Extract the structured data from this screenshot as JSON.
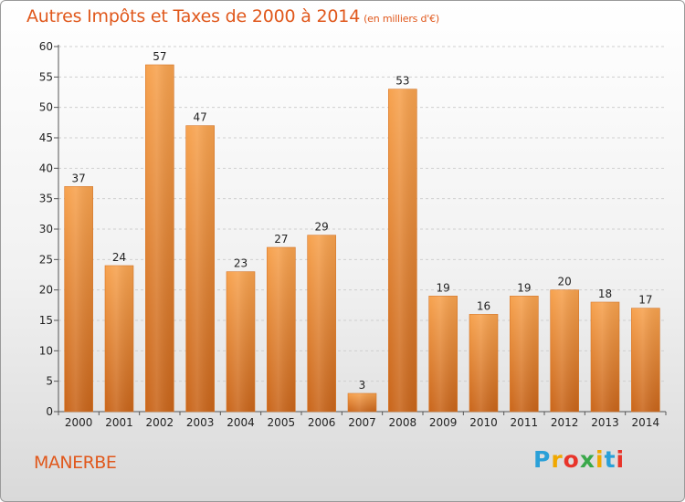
{
  "header": {
    "title": "Autres Impôts et Taxes de 2000 à 2014",
    "subtitle": "(en milliers d'€)"
  },
  "footer": {
    "city": "MANERBE",
    "logo_letters": [
      "P",
      "r",
      "o",
      "x",
      "i",
      "t",
      "i"
    ],
    "logo_colors": [
      "#2aa0d8",
      "#f0a800",
      "#e8342a",
      "#3aa84a",
      "#f0a800",
      "#2aa0d8",
      "#e8342a"
    ]
  },
  "chart_data": {
    "type": "bar",
    "title": "Autres Impôts et Taxes de 2000 à 2014",
    "subtitle": "(en milliers d'€)",
    "categories": [
      "2000",
      "2001",
      "2002",
      "2003",
      "2004",
      "2005",
      "2006",
      "2007",
      "2008",
      "2009",
      "2010",
      "2011",
      "2012",
      "2013",
      "2014"
    ],
    "values": [
      37,
      24,
      57,
      47,
      23,
      27,
      29,
      3,
      53,
      19,
      16,
      19,
      20,
      18,
      17
    ],
    "ylim": [
      0,
      60
    ],
    "yticks": [
      0,
      5,
      10,
      15,
      20,
      25,
      30,
      35,
      40,
      45,
      50,
      55,
      60
    ],
    "grid": true,
    "bar_color_top": "#f7a24e",
    "bar_color_bottom": "#c9651a"
  }
}
